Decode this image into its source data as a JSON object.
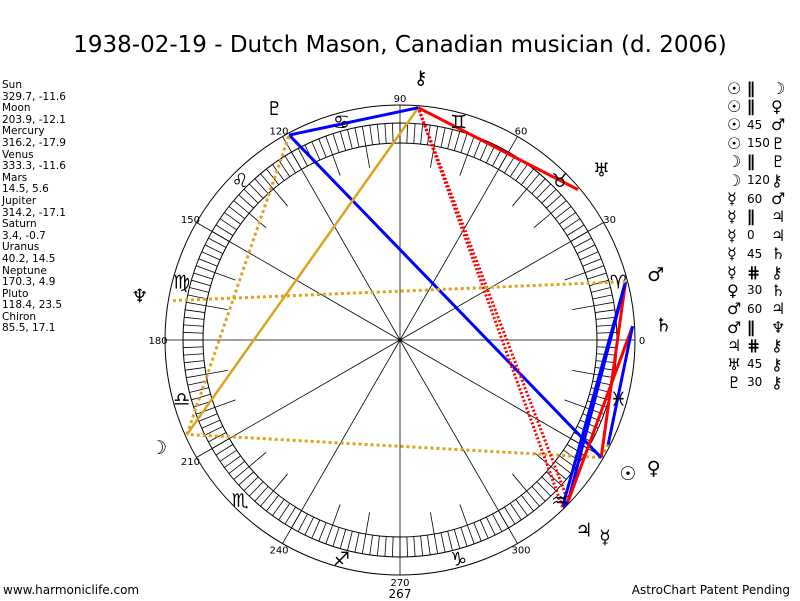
{
  "title": "1938-02-19 - Dutch Mason, Canadian musician (d. 2006)",
  "colors": {
    "blue": "#0000ff",
    "red": "#ff0000",
    "gold": "#daa520",
    "ink": "#000000"
  },
  "planets": [
    {
      "key": "sun",
      "name": "Sun",
      "glyph": "☉",
      "lon": 329.7,
      "decl": -11.6,
      "coords": "329.7, -11.6"
    },
    {
      "key": "moon",
      "name": "Moon",
      "glyph": "☽",
      "lon": 203.9,
      "decl": -12.1,
      "coords": "203.9, -12.1"
    },
    {
      "key": "mercury",
      "name": "Mercury",
      "glyph": "☿",
      "lon": 316.2,
      "decl": -17.9,
      "coords": "316.2, -17.9"
    },
    {
      "key": "venus",
      "name": "Venus",
      "glyph": "♀",
      "lon": 333.3,
      "decl": -11.6,
      "coords": "333.3, -11.6"
    },
    {
      "key": "mars",
      "name": "Mars",
      "glyph": "♂",
      "lon": 14.5,
      "decl": 5.6,
      "coords": "14.5, 5.6"
    },
    {
      "key": "jupiter",
      "name": "Jupiter",
      "glyph": "♃",
      "lon": 314.2,
      "decl": -17.1,
      "coords": "314.2, -17.1"
    },
    {
      "key": "saturn",
      "name": "Saturn",
      "glyph": "♄",
      "lon": 3.4,
      "decl": -0.7,
      "coords": "3.4, -0.7"
    },
    {
      "key": "uranus",
      "name": "Uranus",
      "glyph": "♅",
      "lon": 40.2,
      "decl": 14.5,
      "coords": "40.2, 14.5"
    },
    {
      "key": "neptune",
      "name": "Neptune",
      "glyph": "♆",
      "lon": 170.3,
      "decl": 4.9,
      "coords": "170.3, 4.9"
    },
    {
      "key": "pluto",
      "name": "Pluto",
      "glyph": "♇",
      "lon": 118.4,
      "decl": 23.5,
      "coords": "118.4, 23.5"
    },
    {
      "key": "chiron",
      "name": "Chiron",
      "glyph": "⚷",
      "lon": 85.5,
      "decl": 17.1,
      "coords": "85.5, 17.1"
    }
  ],
  "signs": [
    "♈",
    "♉",
    "♊",
    "♋",
    "♌",
    "♍",
    "♎",
    "♏",
    "♐",
    "♑",
    "♒",
    "♓"
  ],
  "degree_labels": [
    "0",
    "30",
    "60",
    "90",
    "120",
    "150",
    "180",
    "210",
    "240",
    "270",
    "300"
  ],
  "aspects": [
    {
      "p1": "sun",
      "p2": "moon",
      "label": "∥",
      "style": "parallel"
    },
    {
      "p1": "sun",
      "p2": "venus",
      "label": "∥",
      "style": "parallel"
    },
    {
      "p1": "sun",
      "p2": "mars",
      "label": "45",
      "style": "red"
    },
    {
      "p1": "sun",
      "p2": "pluto",
      "label": "150",
      "style": "blue"
    },
    {
      "p1": "moon",
      "p2": "pluto",
      "label": "∥",
      "style": "parallel"
    },
    {
      "p1": "moon",
      "p2": "chiron",
      "label": "120",
      "style": "gold"
    },
    {
      "p1": "mercury",
      "p2": "mars",
      "label": "60",
      "style": "blue"
    },
    {
      "p1": "mercury",
      "p2": "jupiter",
      "label": "∥",
      "style": "parallel"
    },
    {
      "p1": "mercury",
      "p2": "jupiter",
      "label": "0",
      "style": "blue"
    },
    {
      "p1": "mercury",
      "p2": "saturn",
      "label": "45",
      "style": "red"
    },
    {
      "p1": "mercury",
      "p2": "chiron",
      "label": "⋕",
      "style": "contra"
    },
    {
      "p1": "venus",
      "p2": "saturn",
      "label": "30",
      "style": "blue"
    },
    {
      "p1": "mars",
      "p2": "jupiter",
      "label": "60",
      "style": "blue"
    },
    {
      "p1": "mars",
      "p2": "neptune",
      "label": "∥",
      "style": "parallel"
    },
    {
      "p1": "jupiter",
      "p2": "chiron",
      "label": "⋕",
      "style": "contra"
    },
    {
      "p1": "uranus",
      "p2": "chiron",
      "label": "45",
      "style": "red"
    },
    {
      "p1": "pluto",
      "p2": "chiron",
      "label": "30",
      "style": "blue"
    }
  ],
  "footer": {
    "left": "www.harmoniclife.com",
    "center": "267",
    "right": "AstroChart Patent Pending"
  }
}
